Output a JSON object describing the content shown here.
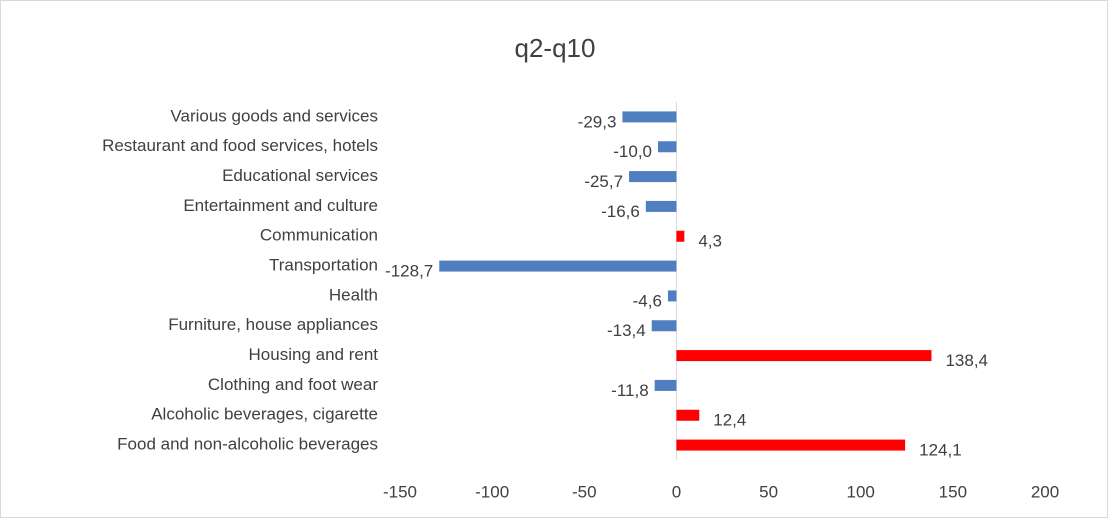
{
  "chart_data": {
    "type": "hbar",
    "title": "q2-q10",
    "categories": [
      "Food and non-alcoholic beverages",
      "Alcoholic beverages, cigarette",
      "Clothing and foot wear",
      "Housing and rent",
      "Furniture, house appliances",
      "Health",
      "Transportation",
      "Communication",
      "Entertainment and culture",
      "Educational services",
      "Restaurant and food services, hotels",
      "Various goods and services"
    ],
    "values": [
      124.1,
      12.4,
      -11.8,
      138.4,
      -13.4,
      -4.6,
      -128.7,
      4.3,
      -16.6,
      -25.7,
      -10.0,
      -29.3
    ],
    "value_labels": [
      "124,1",
      "12,4",
      "-11,8",
      "138,4",
      "-13,4",
      "-4,6",
      "-128,7",
      "4,3",
      "-16,6",
      "-25,7",
      "-10,0",
      "-29,3"
    ],
    "positive_color": "#ff0000",
    "negative_color": "#4f7fc0",
    "xlim": [
      -150,
      200
    ],
    "xticks": [
      -150,
      -100,
      -50,
      0,
      50,
      100,
      150,
      200
    ],
    "grid": false
  }
}
